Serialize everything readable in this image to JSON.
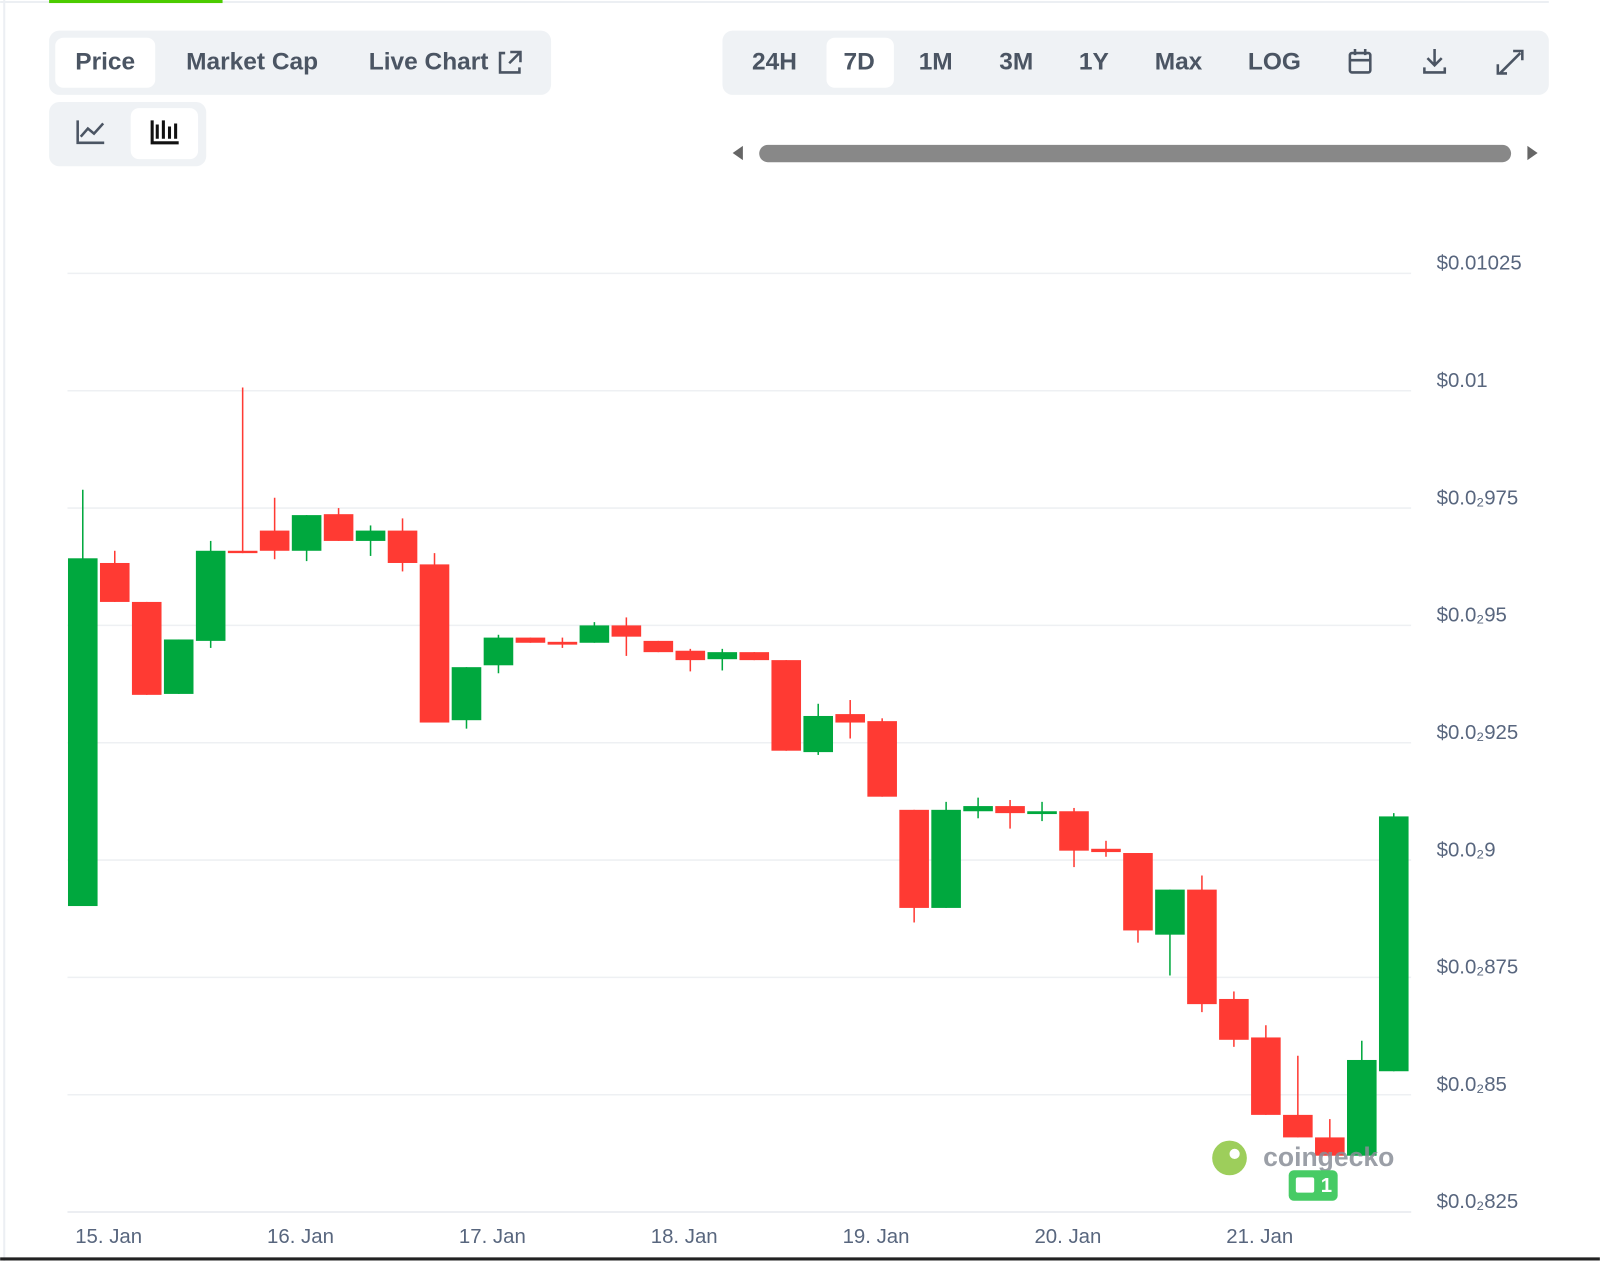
{
  "ui": {
    "tabs": [
      "Price",
      "Market Cap",
      "Live Chart"
    ],
    "ranges": [
      "24H",
      "7D",
      "1M",
      "3M",
      "1Y",
      "Max",
      "LOG"
    ],
    "watermark": "coingecko",
    "badge": "1"
  },
  "chart_data": {
    "type": "candlestick",
    "categories": [
      null,
      "15. Jan",
      null,
      null,
      null,
      null,
      null,
      "16. Jan",
      null,
      null,
      null,
      null,
      null,
      "17. Jan",
      null,
      null,
      null,
      null,
      null,
      "18. Jan",
      null,
      null,
      null,
      null,
      null,
      "19. Jan",
      null,
      null,
      null,
      null,
      null,
      "20. Jan",
      null,
      null,
      null,
      null,
      null,
      "21. Jan",
      null,
      null,
      null,
      null
    ],
    "open": [
      0.008902,
      0.009633,
      0.00955,
      0.009354,
      0.009467,
      0.009659,
      0.009702,
      0.009659,
      0.009737,
      0.00968,
      0.009702,
      0.00963,
      0.009298,
      0.009415,
      0.009474,
      0.009465,
      0.009463,
      0.0095,
      0.009467,
      0.009446,
      0.009428,
      0.009443,
      0.009426,
      0.00923,
      0.009311,
      0.009296,
      0.009107,
      0.008898,
      0.009104,
      0.009115,
      0.009098,
      0.009104,
      0.009024,
      0.009015,
      0.008841,
      0.008937,
      0.008704,
      0.008622,
      0.008457,
      0.008409,
      0.00837,
      0.00855
    ],
    "high": [
      0.009789,
      0.009659,
      0.00955,
      0.00947,
      0.00968,
      0.010007,
      0.009772,
      0.009735,
      0.00975,
      0.009713,
      0.009728,
      0.009654,
      0.009411,
      0.00948,
      0.009474,
      0.009474,
      0.009507,
      0.009517,
      0.009467,
      0.00945,
      0.00945,
      0.009443,
      0.009426,
      0.009333,
      0.009341,
      0.009302,
      0.009107,
      0.009124,
      0.009133,
      0.009128,
      0.009124,
      0.009111,
      0.009041,
      0.009015,
      0.008937,
      0.008967,
      0.00872,
      0.008648,
      0.008583,
      0.008448,
      0.008615,
      0.0091
    ],
    "low": [
      0.008902,
      0.00955,
      0.009352,
      0.009354,
      0.009452,
      0.009654,
      0.009641,
      0.009637,
      0.00968,
      0.009648,
      0.009615,
      0.009293,
      0.00928,
      0.009398,
      0.009463,
      0.009452,
      0.009463,
      0.009435,
      0.009443,
      0.009402,
      0.009404,
      0.009426,
      0.009233,
      0.009224,
      0.009259,
      0.009135,
      0.008867,
      0.008898,
      0.009089,
      0.009067,
      0.009083,
      0.008985,
      0.009007,
      0.008824,
      0.008754,
      0.008676,
      0.008602,
      0.008457,
      0.008409,
      0.00837,
      0.00837,
      0.00855
    ],
    "close": [
      0.009643,
      0.00955,
      0.009352,
      0.00947,
      0.009659,
      0.009654,
      0.009659,
      0.009735,
      0.00968,
      0.009702,
      0.009633,
      0.009293,
      0.009411,
      0.009474,
      0.009463,
      0.009459,
      0.0095,
      0.009476,
      0.009443,
      0.009426,
      0.009443,
      0.009426,
      0.009233,
      0.009307,
      0.009293,
      0.009135,
      0.008898,
      0.009107,
      0.009115,
      0.0091,
      0.009104,
      0.00902,
      0.009017,
      0.00885,
      0.008937,
      0.008693,
      0.008617,
      0.008457,
      0.008409,
      0.00837,
      0.008574,
      0.009093
    ],
    "up_color": "#00a83e",
    "down_color": "#ff3a33",
    "ylim": [
      0.00825,
      0.01025
    ],
    "yticks": [
      {
        "value": 0.00825,
        "label": "$0.0₂825"
      },
      {
        "value": 0.0085,
        "label": "$0.0₂85"
      },
      {
        "value": 0.00875,
        "label": "$0.0₂875"
      },
      {
        "value": 0.009,
        "label": "$0.0₂9"
      },
      {
        "value": 0.00925,
        "label": "$0.0₂925"
      },
      {
        "value": 0.0095,
        "label": "$0.0₂95"
      },
      {
        "value": 0.00975,
        "label": "$0.0₂975"
      },
      {
        "value": 0.01,
        "label": "$0.01"
      },
      {
        "value": 0.01025,
        "label": "$0.01025"
      }
    ],
    "grid": true
  }
}
